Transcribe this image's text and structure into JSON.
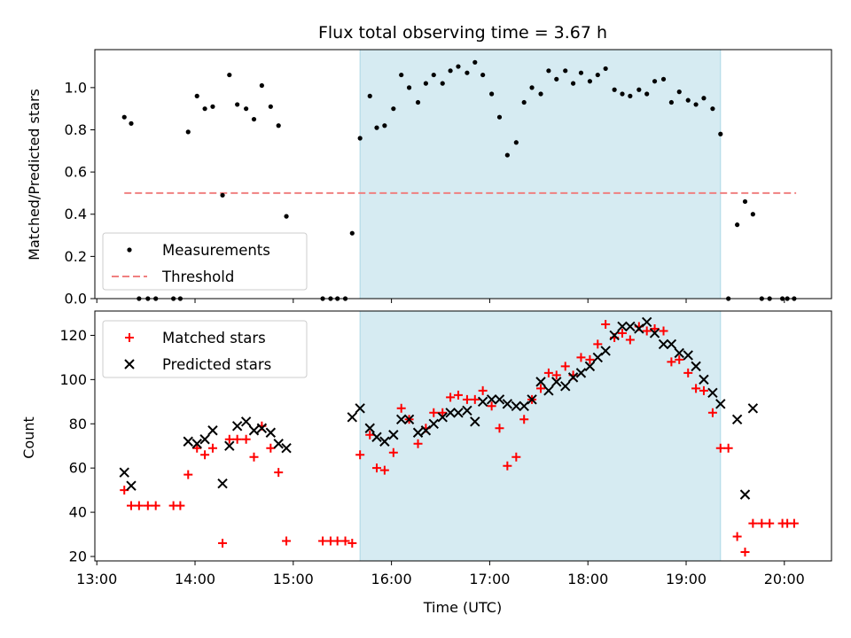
{
  "chart_data": [
    {
      "type": "scatter",
      "title": "Flux total observing time = 3.67 h",
      "xlabel": "",
      "ylabel": "Matched/Predicted stars",
      "xlim": [
        12.98,
        20.48
      ],
      "ylim": [
        0,
        1.18
      ],
      "xticks": [
        13,
        14,
        15,
        16,
        17,
        18,
        19,
        20
      ],
      "yticks": [
        0.0,
        0.2,
        0.4,
        0.6,
        0.8,
        1.0
      ],
      "ytick_labels": [
        "0.0",
        "0.2",
        "0.4",
        "0.6",
        "0.8",
        "1.0"
      ],
      "shaded_span": [
        15.68,
        19.35
      ],
      "threshold": {
        "name": "Threshold",
        "value": 0.5,
        "x": [
          13.28,
          20.12
        ],
        "color": "#f08080"
      },
      "legend": {
        "location": "lower-left",
        "entries": [
          "Measurements",
          "Threshold"
        ]
      },
      "series": [
        {
          "name": "Measurements",
          "marker": "dot",
          "color": "#000000",
          "points": [
            [
              13.28,
              0.86
            ],
            [
              13.35,
              0.83
            ],
            [
              13.43,
              0.0
            ],
            [
              13.52,
              0.0
            ],
            [
              13.6,
              0.0
            ],
            [
              13.78,
              0.0
            ],
            [
              13.85,
              0.0
            ],
            [
              13.93,
              0.79
            ],
            [
              14.02,
              0.96
            ],
            [
              14.1,
              0.9
            ],
            [
              14.18,
              0.91
            ],
            [
              14.28,
              0.49
            ],
            [
              14.35,
              1.06
            ],
            [
              14.43,
              0.92
            ],
            [
              14.52,
              0.9
            ],
            [
              14.6,
              0.85
            ],
            [
              14.68,
              1.01
            ],
            [
              14.77,
              0.91
            ],
            [
              14.85,
              0.82
            ],
            [
              14.93,
              0.39
            ],
            [
              15.3,
              0.0
            ],
            [
              15.38,
              0.0
            ],
            [
              15.45,
              0.0
            ],
            [
              15.53,
              0.0
            ],
            [
              15.6,
              0.31
            ],
            [
              15.68,
              0.76
            ],
            [
              15.78,
              0.96
            ],
            [
              15.85,
              0.81
            ],
            [
              15.93,
              0.82
            ],
            [
              16.02,
              0.9
            ],
            [
              16.1,
              1.06
            ],
            [
              16.18,
              1.0
            ],
            [
              16.27,
              0.93
            ],
            [
              16.35,
              1.02
            ],
            [
              16.43,
              1.06
            ],
            [
              16.52,
              1.02
            ],
            [
              16.6,
              1.08
            ],
            [
              16.68,
              1.1
            ],
            [
              16.77,
              1.07
            ],
            [
              16.85,
              1.12
            ],
            [
              16.93,
              1.06
            ],
            [
              17.02,
              0.97
            ],
            [
              17.1,
              0.86
            ],
            [
              17.18,
              0.68
            ],
            [
              17.27,
              0.74
            ],
            [
              17.35,
              0.93
            ],
            [
              17.43,
              1.0
            ],
            [
              17.52,
              0.97
            ],
            [
              17.6,
              1.08
            ],
            [
              17.68,
              1.04
            ],
            [
              17.77,
              1.08
            ],
            [
              17.85,
              1.02
            ],
            [
              17.93,
              1.07
            ],
            [
              18.02,
              1.03
            ],
            [
              18.1,
              1.06
            ],
            [
              18.18,
              1.09
            ],
            [
              18.27,
              0.99
            ],
            [
              18.35,
              0.97
            ],
            [
              18.43,
              0.96
            ],
            [
              18.52,
              0.99
            ],
            [
              18.6,
              0.97
            ],
            [
              18.68,
              1.03
            ],
            [
              18.77,
              1.04
            ],
            [
              18.85,
              0.93
            ],
            [
              18.93,
              0.98
            ],
            [
              19.02,
              0.94
            ],
            [
              19.1,
              0.92
            ],
            [
              19.18,
              0.95
            ],
            [
              19.27,
              0.9
            ],
            [
              19.35,
              0.78
            ],
            [
              19.43,
              0.0
            ],
            [
              19.52,
              0.35
            ],
            [
              19.6,
              0.46
            ],
            [
              19.68,
              0.4
            ],
            [
              19.77,
              0.0
            ],
            [
              19.85,
              0.0
            ],
            [
              19.98,
              0.0
            ],
            [
              20.03,
              0.0
            ],
            [
              20.1,
              0.0
            ]
          ]
        }
      ]
    },
    {
      "type": "scatter",
      "title": "",
      "xlabel": "Time (UTC)",
      "ylabel": "Count",
      "xlim": [
        12.98,
        20.48
      ],
      "ylim": [
        18,
        131
      ],
      "xticks": [
        13,
        14,
        15,
        16,
        17,
        18,
        19,
        20
      ],
      "xtick_labels": [
        "13:00",
        "14:00",
        "15:00",
        "16:00",
        "17:00",
        "18:00",
        "19:00",
        "20:00"
      ],
      "yticks": [
        20,
        40,
        60,
        80,
        100,
        120
      ],
      "ytick_labels": [
        "20",
        "40",
        "60",
        "80",
        "100",
        "120"
      ],
      "shaded_span": [
        15.68,
        19.35
      ],
      "legend": {
        "location": "upper-left",
        "entries": [
          "Matched stars",
          "Predicted stars"
        ]
      },
      "series": [
        {
          "name": "Matched stars",
          "marker": "plus",
          "color": "#ff0000",
          "points": [
            [
              13.28,
              50
            ],
            [
              13.35,
              43
            ],
            [
              13.43,
              43
            ],
            [
              13.52,
              43
            ],
            [
              13.6,
              43
            ],
            [
              13.78,
              43
            ],
            [
              13.85,
              43
            ],
            [
              13.93,
              57
            ],
            [
              14.02,
              69
            ],
            [
              14.1,
              66
            ],
            [
              14.18,
              69
            ],
            [
              14.28,
              26
            ],
            [
              14.35,
              73
            ],
            [
              14.43,
              73
            ],
            [
              14.52,
              73
            ],
            [
              14.6,
              65
            ],
            [
              14.68,
              79
            ],
            [
              14.77,
              69
            ],
            [
              14.85,
              58
            ],
            [
              14.93,
              27
            ],
            [
              15.3,
              27
            ],
            [
              15.38,
              27
            ],
            [
              15.45,
              27
            ],
            [
              15.53,
              27
            ],
            [
              15.6,
              26
            ],
            [
              15.68,
              66
            ],
            [
              15.78,
              75
            ],
            [
              15.85,
              60
            ],
            [
              15.93,
              59
            ],
            [
              16.02,
              67
            ],
            [
              16.1,
              87
            ],
            [
              16.18,
              82
            ],
            [
              16.27,
              71
            ],
            [
              16.35,
              78
            ],
            [
              16.43,
              85
            ],
            [
              16.52,
              85
            ],
            [
              16.6,
              92
            ],
            [
              16.68,
              93
            ],
            [
              16.77,
              91
            ],
            [
              16.85,
              91
            ],
            [
              16.93,
              95
            ],
            [
              17.02,
              88
            ],
            [
              17.1,
              78
            ],
            [
              17.18,
              61
            ],
            [
              17.27,
              65
            ],
            [
              17.35,
              82
            ],
            [
              17.43,
              91
            ],
            [
              17.52,
              96
            ],
            [
              17.6,
              103
            ],
            [
              17.68,
              102
            ],
            [
              17.77,
              106
            ],
            [
              17.85,
              102
            ],
            [
              17.93,
              110
            ],
            [
              18.02,
              109
            ],
            [
              18.1,
              116
            ],
            [
              18.18,
              125
            ],
            [
              18.27,
              119
            ],
            [
              18.35,
              121
            ],
            [
              18.43,
              118
            ],
            [
              18.52,
              124
            ],
            [
              18.6,
              122
            ],
            [
              18.68,
              123
            ],
            [
              18.77,
              122
            ],
            [
              18.85,
              108
            ],
            [
              18.93,
              109
            ],
            [
              19.02,
              103
            ],
            [
              19.1,
              96
            ],
            [
              19.18,
              95
            ],
            [
              19.27,
              85
            ],
            [
              19.35,
              69
            ],
            [
              19.43,
              69
            ],
            [
              19.52,
              29
            ],
            [
              19.6,
              22
            ],
            [
              19.68,
              35
            ],
            [
              19.77,
              35
            ],
            [
              19.85,
              35
            ],
            [
              19.98,
              35
            ],
            [
              20.03,
              35
            ],
            [
              20.1,
              35
            ]
          ]
        },
        {
          "name": "Predicted stars",
          "marker": "x",
          "color": "#000000",
          "points": [
            [
              13.28,
              58
            ],
            [
              13.35,
              52
            ],
            [
              13.93,
              72
            ],
            [
              14.02,
              71
            ],
            [
              14.1,
              73
            ],
            [
              14.18,
              77
            ],
            [
              14.28,
              53
            ],
            [
              14.35,
              70
            ],
            [
              14.43,
              79
            ],
            [
              14.52,
              81
            ],
            [
              14.6,
              77
            ],
            [
              14.68,
              78
            ],
            [
              14.77,
              76
            ],
            [
              14.85,
              71
            ],
            [
              14.93,
              69
            ],
            [
              15.6,
              83
            ],
            [
              15.68,
              87
            ],
            [
              15.78,
              78
            ],
            [
              15.85,
              74
            ],
            [
              15.93,
              72
            ],
            [
              16.02,
              75
            ],
            [
              16.1,
              82
            ],
            [
              16.18,
              82
            ],
            [
              16.27,
              76
            ],
            [
              16.35,
              77
            ],
            [
              16.43,
              80
            ],
            [
              16.52,
              83
            ],
            [
              16.6,
              85
            ],
            [
              16.68,
              85
            ],
            [
              16.77,
              86
            ],
            [
              16.85,
              81
            ],
            [
              16.93,
              90
            ],
            [
              17.02,
              91
            ],
            [
              17.1,
              91
            ],
            [
              17.18,
              89
            ],
            [
              17.27,
              88
            ],
            [
              17.35,
              88
            ],
            [
              17.43,
              91
            ],
            [
              17.52,
              99
            ],
            [
              17.6,
              95
            ],
            [
              17.68,
              99
            ],
            [
              17.77,
              97
            ],
            [
              17.85,
              101
            ],
            [
              17.93,
              103
            ],
            [
              18.02,
              106
            ],
            [
              18.1,
              110
            ],
            [
              18.18,
              113
            ],
            [
              18.27,
              120
            ],
            [
              18.35,
              124
            ],
            [
              18.43,
              124
            ],
            [
              18.52,
              123
            ],
            [
              18.6,
              126
            ],
            [
              18.68,
              121
            ],
            [
              18.77,
              116
            ],
            [
              18.85,
              116
            ],
            [
              18.93,
              112
            ],
            [
              19.02,
              111
            ],
            [
              19.1,
              106
            ],
            [
              19.18,
              100
            ],
            [
              19.27,
              94
            ],
            [
              19.35,
              89
            ],
            [
              19.52,
              82
            ],
            [
              19.6,
              48
            ],
            [
              19.68,
              87
            ]
          ]
        }
      ]
    }
  ]
}
